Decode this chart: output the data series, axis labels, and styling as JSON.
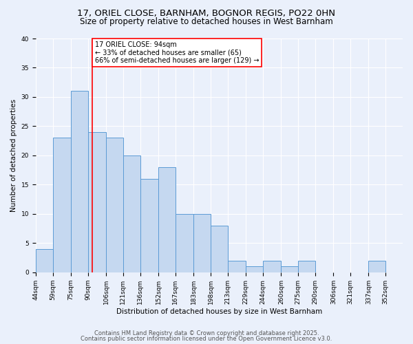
{
  "title": "17, ORIEL CLOSE, BARNHAM, BOGNOR REGIS, PO22 0HN",
  "subtitle": "Size of property relative to detached houses in West Barnham",
  "xlabel": "Distribution of detached houses by size in West Barnham",
  "ylabel": "Number of detached properties",
  "bin_labels": [
    "44sqm",
    "59sqm",
    "75sqm",
    "90sqm",
    "106sqm",
    "121sqm",
    "136sqm",
    "152sqm",
    "167sqm",
    "183sqm",
    "198sqm",
    "213sqm",
    "229sqm",
    "244sqm",
    "260sqm",
    "275sqm",
    "290sqm",
    "306sqm",
    "321sqm",
    "337sqm",
    "352sqm"
  ],
  "bin_edges": [
    44,
    59,
    75,
    90,
    106,
    121,
    136,
    152,
    167,
    183,
    198,
    213,
    229,
    244,
    260,
    275,
    290,
    306,
    321,
    337,
    352,
    367
  ],
  "values": [
    4,
    23,
    31,
    24,
    23,
    20,
    16,
    18,
    10,
    10,
    8,
    2,
    1,
    2,
    1,
    2,
    0,
    0,
    0,
    2,
    0
  ],
  "bar_color": "#c5d8f0",
  "bar_edge_color": "#5b9bd5",
  "bg_color": "#eaf0fb",
  "grid_color": "#ffffff",
  "vline_x": 94,
  "vline_color": "red",
  "annotation_text": "17 ORIEL CLOSE: 94sqm\n← 33% of detached houses are smaller (65)\n66% of semi-detached houses are larger (129) →",
  "annotation_box_color": "white",
  "annotation_box_edge": "red",
  "ylim": [
    0,
    40
  ],
  "yticks": [
    0,
    5,
    10,
    15,
    20,
    25,
    30,
    35,
    40
  ],
  "footer1": "Contains HM Land Registry data © Crown copyright and database right 2025.",
  "footer2": "Contains public sector information licensed under the Open Government Licence v3.0.",
  "title_fontsize": 9.5,
  "subtitle_fontsize": 8.5,
  "axis_label_fontsize": 7.5,
  "tick_fontsize": 6.5,
  "annotation_fontsize": 7,
  "footer_fontsize": 6
}
